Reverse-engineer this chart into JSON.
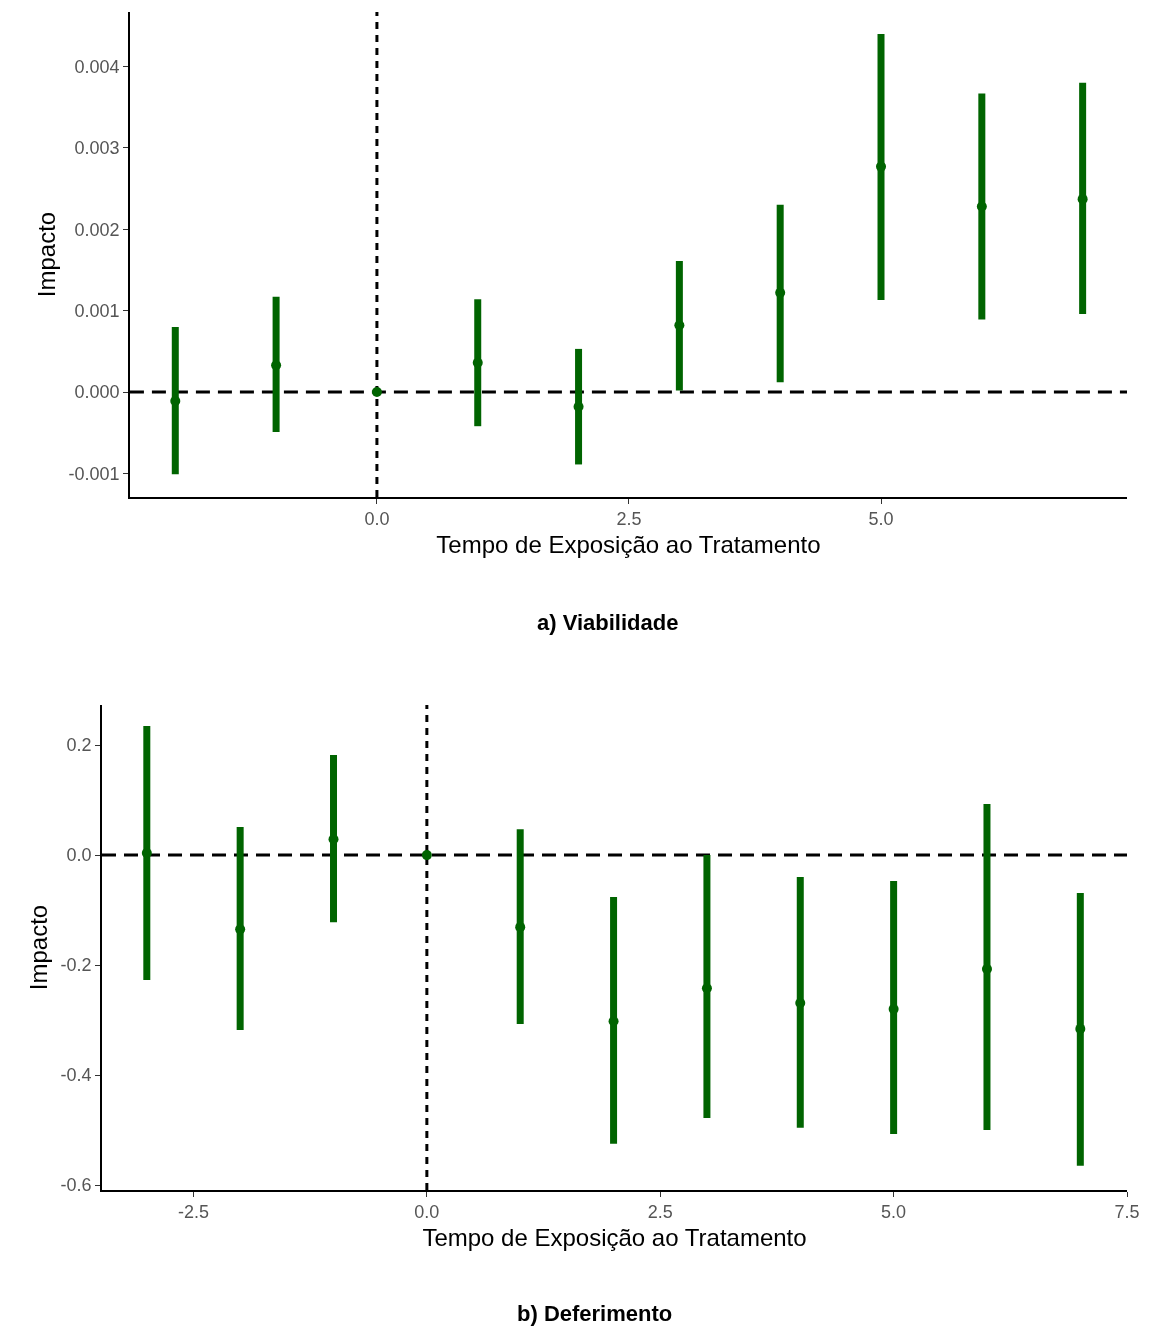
{
  "chart_data": [
    {
      "type": "scatter",
      "title": "a) Viabilidade",
      "xlabel": "Tempo de Exposição ao Tratamento",
      "ylabel": "Impacto",
      "x": [
        -2,
        -1,
        0,
        1,
        2,
        3,
        4,
        5,
        6,
        7
      ],
      "series": [
        {
          "color": "#006400",
          "values": [
            -0.00011,
            0.00033,
            0,
            0.00036,
            -0.00018,
            0.00082,
            0.00122,
            0.00277,
            0.00228,
            0.00237
          ],
          "errors": [
            [
              -0.00101,
              0.0008
            ],
            [
              -0.00049,
              0.00117
            ],
            null,
            [
              -0.00042,
              0.00114
            ],
            [
              -0.00089,
              0.00053
            ],
            [
              2e-05,
              0.00161
            ],
            [
              0.00012,
              0.0023
            ],
            [
              0.00113,
              0.0044
            ],
            [
              0.00089,
              0.00367
            ],
            [
              0.00096,
              0.0038
            ]
          ]
        }
      ],
      "xlim": [
        -2.45,
        7.44
      ],
      "xticks": [
        {
          "value": 0,
          "label": "0.0"
        },
        {
          "value": 2.5,
          "label": "2.5"
        },
        {
          "value": 5,
          "label": "5.0"
        }
      ],
      "ylim": [
        -0.00129,
        0.00467
      ],
      "yticks": [
        {
          "value": -0.001,
          "label": "-0.001"
        },
        {
          "value": 0,
          "label": "0.000"
        },
        {
          "value": 0.001,
          "label": "0.001"
        },
        {
          "value": 0.002,
          "label": "0.002"
        },
        {
          "value": 0.003,
          "label": "0.003"
        },
        {
          "value": 0.004,
          "label": "0.004"
        }
      ],
      "ref_lines": [
        {
          "axis": "x",
          "value": 0,
          "line_style": "dotted",
          "color": "#000000"
        },
        {
          "axis": "y",
          "value": 0,
          "line_style": "dashed",
          "color": "#000000"
        }
      ],
      "marker": "circle",
      "grid": false
    },
    {
      "type": "scatter",
      "title": "b) Deferimento",
      "xlabel": "Tempo de Exposição ao Tratamento",
      "ylabel": "Impacto",
      "x": [
        -3,
        -2,
        -1,
        0,
        1,
        2,
        3,
        4,
        5,
        6,
        7
      ],
      "series": [
        {
          "color": "#006400",
          "values": [
            0.004,
            -0.135,
            0.029,
            0,
            -0.131,
            -0.302,
            -0.242,
            -0.269,
            -0.28,
            -0.207,
            -0.316
          ],
          "errors": [
            [
              -0.227,
              0.235
            ],
            [
              -0.318,
              0.051
            ],
            [
              -0.122,
              0.182
            ],
            null,
            [
              -0.307,
              0.047
            ],
            [
              -0.525,
              -0.076
            ],
            [
              -0.478,
              0.0
            ],
            [
              -0.496,
              -0.04
            ],
            [
              -0.507,
              -0.047
            ],
            [
              -0.5,
              0.093
            ],
            [
              -0.565,
              -0.069
            ]
          ]
        }
      ],
      "xlim": [
        -3.48,
        7.5
      ],
      "xticks": [
        {
          "value": -2.5,
          "label": "-2.5"
        },
        {
          "value": 0,
          "label": "0.0"
        },
        {
          "value": 2.5,
          "label": "2.5"
        },
        {
          "value": 5,
          "label": "5.0"
        },
        {
          "value": 7.5,
          "label": "7.5"
        }
      ],
      "ylim": [
        -0.609,
        0.273
      ],
      "yticks": [
        {
          "value": -0.6,
          "label": "-0.6"
        },
        {
          "value": -0.4,
          "label": "-0.4"
        },
        {
          "value": -0.2,
          "label": "-0.2"
        },
        {
          "value": 0,
          "label": "0.0"
        },
        {
          "value": 0.2,
          "label": "0.2"
        }
      ],
      "ref_lines": [
        {
          "axis": "x",
          "value": 0,
          "line_style": "dotted",
          "color": "#000000"
        },
        {
          "axis": "y",
          "value": 0,
          "line_style": "dashed",
          "color": "#000000"
        }
      ],
      "marker": "circle",
      "grid": false
    }
  ]
}
